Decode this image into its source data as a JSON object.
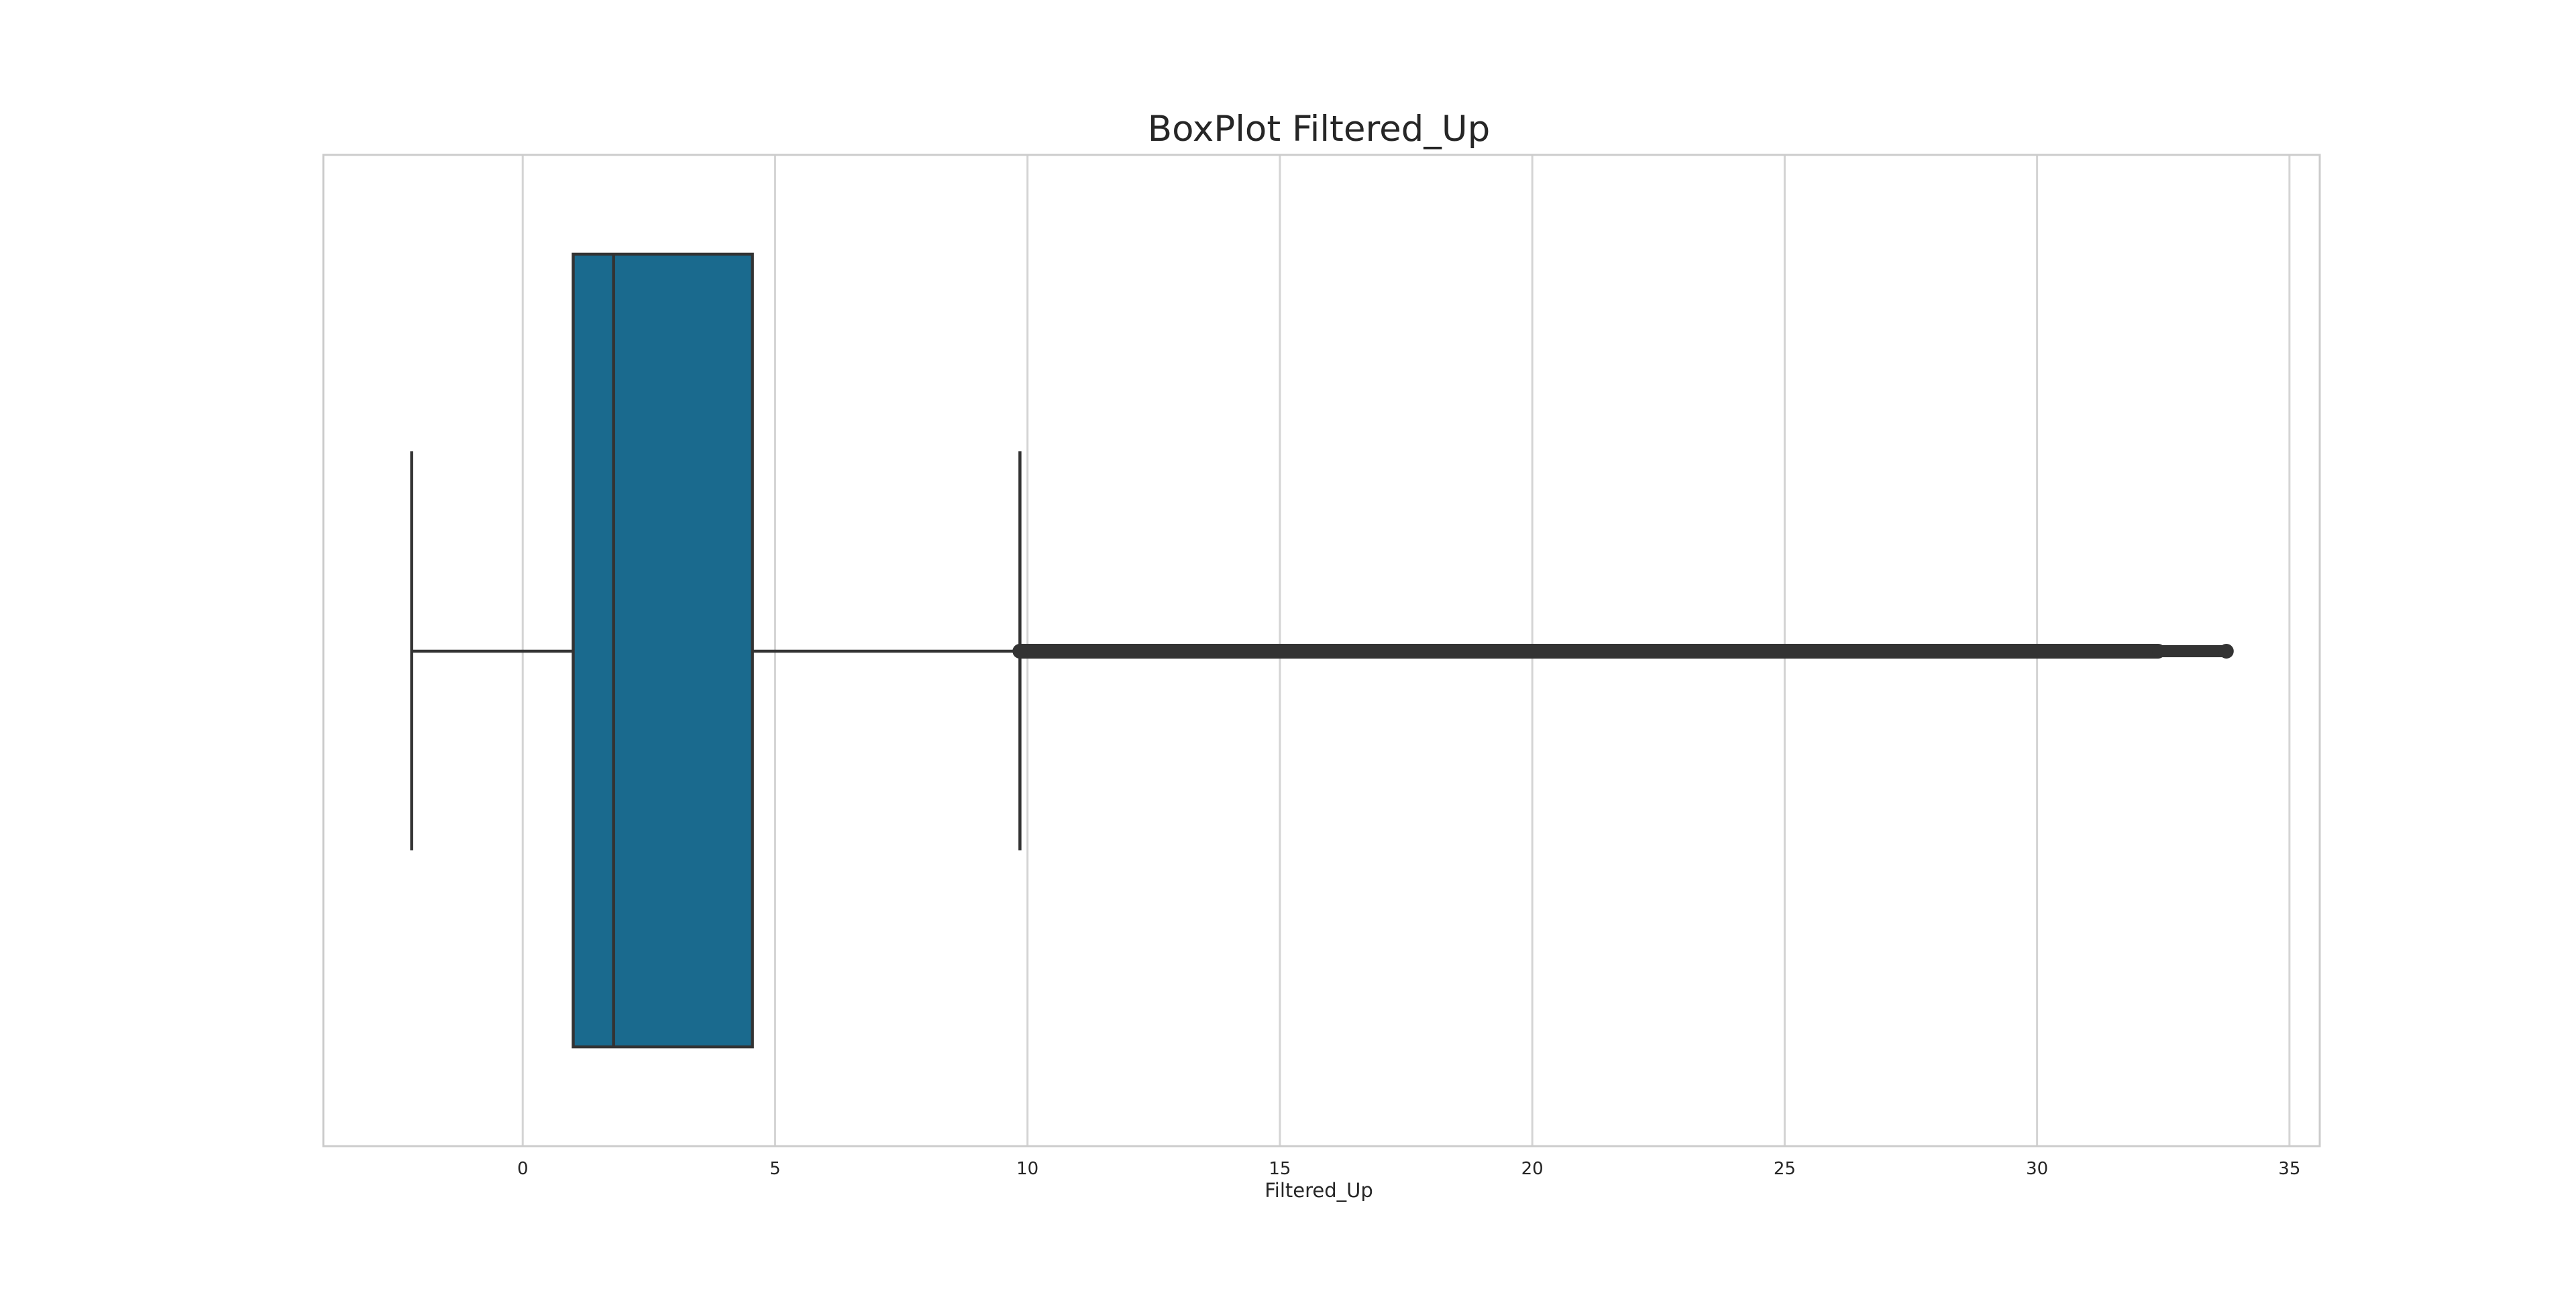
{
  "chart_data": {
    "type": "box",
    "title": "BoxPlot Filtered_Up",
    "xlabel": "Filtered_Up",
    "ylabel": "",
    "xlim": [
      -3.95,
      35.6
    ],
    "xticks": [
      0,
      5,
      10,
      15,
      20,
      25,
      30,
      35
    ],
    "xtick_labels": [
      "0",
      "5",
      "10",
      "15",
      "20",
      "25",
      "30",
      "35"
    ],
    "grid": true,
    "box": {
      "whisker_low": -2.2,
      "q1": 1.0,
      "median": 1.8,
      "q3": 4.55,
      "whisker_high": 9.85
    },
    "outliers": {
      "min": 9.85,
      "max": 33.75,
      "dense_until": 32.4
    },
    "colors": {
      "box_fill": "#1a6a8e",
      "line": "#333333",
      "grid": "#d4d4d4",
      "frame": "#cccccc"
    }
  }
}
